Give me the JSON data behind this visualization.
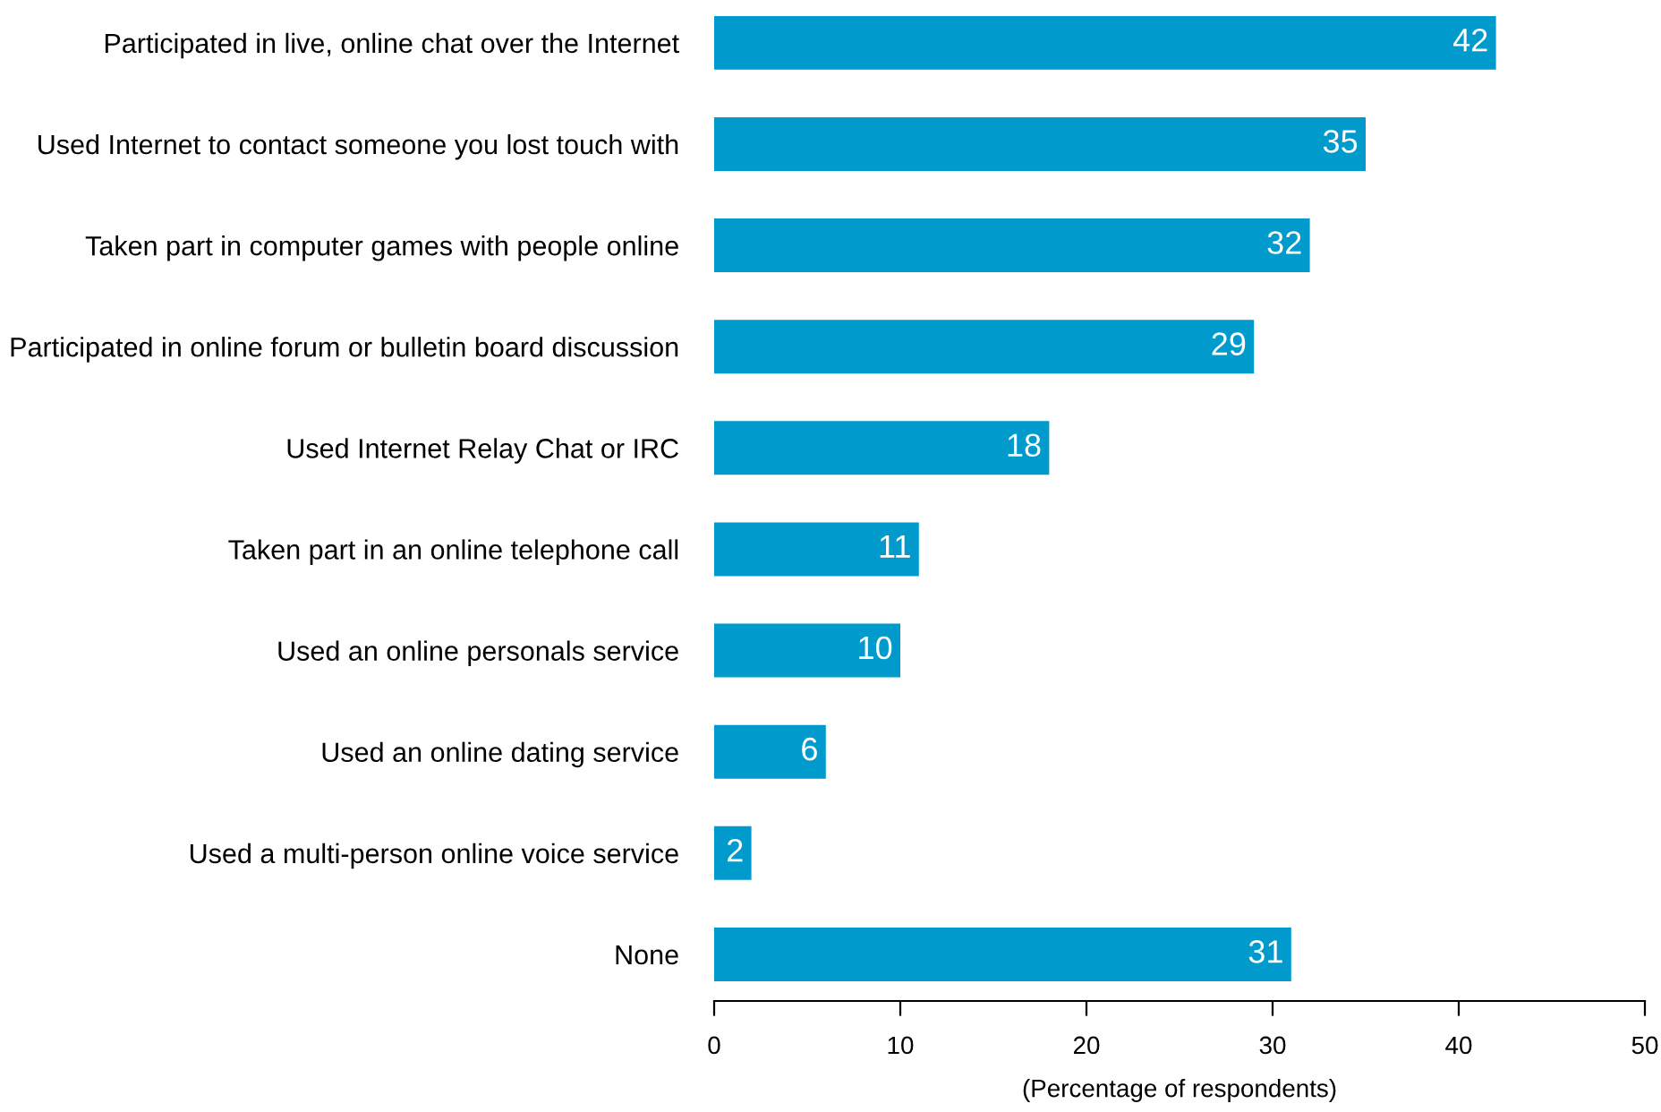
{
  "chart_data": {
    "type": "bar",
    "orientation": "horizontal",
    "categories": [
      "Participated in live, online chat over the Internet",
      "Used Internet to contact someone you lost touch with",
      "Taken part in computer games with people online",
      "Participated in online forum or bulletin board discussion",
      "Used Internet Relay Chat or IRC",
      "Taken part in an online telephone call",
      "Used an online personals service",
      "Used an online dating service",
      "Used a multi-person online voice service",
      "None"
    ],
    "values": [
      42,
      35,
      32,
      29,
      18,
      11,
      10,
      6,
      2,
      31
    ],
    "color": "#009bcc",
    "xlabel": "(Percentage of respondents)",
    "xlim": [
      0,
      50
    ],
    "xticks": [
      0,
      10,
      20,
      30,
      40,
      50
    ],
    "data_labels": true,
    "grid": false,
    "legend": false
  }
}
